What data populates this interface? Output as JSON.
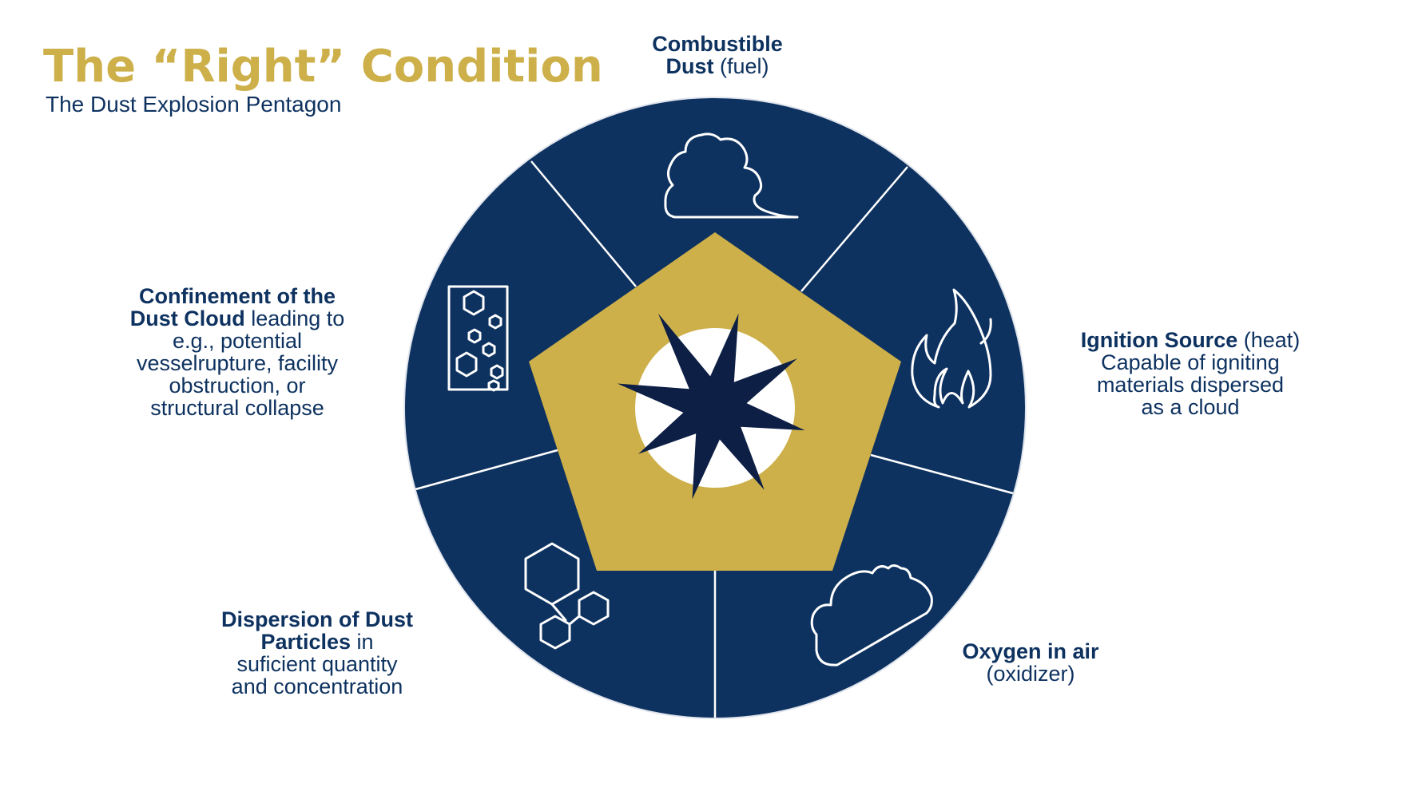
{
  "header": {
    "title": "The “Right” Condition",
    "subtitle": "The Dust Explosion Pentagon"
  },
  "colors": {
    "navy": "#0e3260",
    "gold": "#cdb04a",
    "star": "#0d1f45",
    "white": "#ffffff"
  },
  "segments": [
    {
      "icon": "dust-cloud-icon",
      "bold": "Combustible",
      "bold2": "Dust",
      "normal": " (fuel)"
    },
    {
      "icon": "flame-icon",
      "bold": "Ignition Source",
      "normal": " (heat)",
      "lines": [
        "Capable of igniting",
        "materials dispersed",
        "as a cloud"
      ]
    },
    {
      "icon": "cloud-icon",
      "bold": "Oxygen in air",
      "normal": "(oxidizer)"
    },
    {
      "icon": "hexagons-icon",
      "bold": "Dispersion of Dust",
      "bold2": "Particles",
      "normal": " in",
      "lines": [
        "suficient quantity",
        "and concentration"
      ]
    },
    {
      "icon": "confined-particles-icon",
      "bold": "Confinement of the",
      "bold2": "Dust Cloud",
      "normal": " leading to",
      "lines": [
        "e.g., potential",
        "vesselrupture, facility",
        "obstruction,  or",
        "structural collapse"
      ]
    }
  ],
  "center": {
    "icon": "explosion-star-icon"
  }
}
